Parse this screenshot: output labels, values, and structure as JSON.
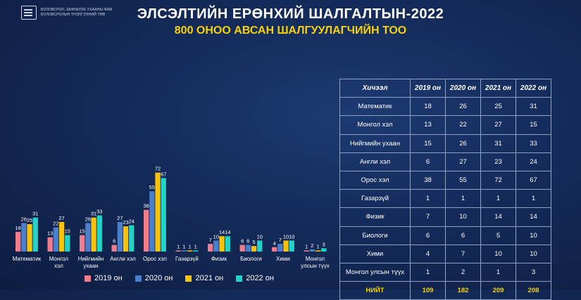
{
  "header": {
    "logo_line1": "БОЛОВСРОЛ, ШИНЖЛЭХ УХААНЫ ЯАМ",
    "logo_line2": "БОЛОВСРОЛЫН ҮНЭЛГЭЭНИЙ ТӨВ",
    "title": "ЭЛСЭЛТИЙН ЕРӨНХИЙ ШАЛГАЛТЫН-2022",
    "subtitle": "800 ОНОО АВСАН ШАЛГУУЛАГЧИЙН ТОО"
  },
  "colors": {
    "2019": "#f07d8b",
    "2020": "#4a7fcc",
    "2021": "#f7c20a",
    "2022": "#1fd4c6"
  },
  "chart_data": {
    "type": "bar",
    "categories": [
      "Математик",
      "Монгол хэл",
      "Нийгмийн ухаан",
      "Англи хэл",
      "Орос хэл",
      "Газарзүй",
      "Физик",
      "Биологи",
      "Хими",
      "Монгол улсын түүх"
    ],
    "category_labels": [
      [
        "Математик"
      ],
      [
        "Монгол",
        "хэл"
      ],
      [
        "Нийгмийн",
        "ухаан"
      ],
      [
        "Англи хэл"
      ],
      [
        "Орос хэл"
      ],
      [
        "Газарзүй"
      ],
      [
        "Физик"
      ],
      [
        "Биологи"
      ],
      [
        "Хими"
      ],
      [
        "Монгол",
        "улсын түүх"
      ]
    ],
    "series": [
      {
        "name": "2019 он",
        "values": [
          18,
          13,
          15,
          6,
          38,
          1,
          7,
          6,
          4,
          1
        ]
      },
      {
        "name": "2020 он",
        "values": [
          26,
          22,
          26,
          27,
          55,
          1,
          10,
          6,
          7,
          2
        ]
      },
      {
        "name": "2021 он",
        "values": [
          25,
          27,
          31,
          23,
          72,
          1,
          14,
          5,
          10,
          1
        ]
      },
      {
        "name": "2022 он",
        "values": [
          31,
          15,
          33,
          24,
          67,
          1,
          14,
          10,
          10,
          3
        ]
      }
    ],
    "ylim": [
      0,
      80
    ],
    "legend_position": "bottom"
  },
  "table": {
    "headers": [
      "Хичээл",
      "2019 он",
      "2020 он",
      "2021 он",
      "2022 он"
    ],
    "rows": [
      [
        "Математик",
        "18",
        "26",
        "25",
        "31"
      ],
      [
        "Монгол хэл",
        "13",
        "22",
        "27",
        "15"
      ],
      [
        "Нийгмийн ухаан",
        "15",
        "26",
        "31",
        "33"
      ],
      [
        "Англи хэл",
        "6",
        "27",
        "23",
        "24"
      ],
      [
        "Орос хэл",
        "38",
        "55",
        "72",
        "67"
      ],
      [
        "Газарзүй",
        "1",
        "1",
        "1",
        "1"
      ],
      [
        "Физик",
        "7",
        "10",
        "14",
        "14"
      ],
      [
        "Биологи",
        "6",
        "6",
        "5",
        "10"
      ],
      [
        "Хими",
        "4",
        "7",
        "10",
        "10"
      ],
      [
        "Монгол улсын түүх",
        "1",
        "2",
        "1",
        "3"
      ]
    ],
    "total": [
      "НИЙТ",
      "109",
      "182",
      "209",
      "208"
    ]
  }
}
